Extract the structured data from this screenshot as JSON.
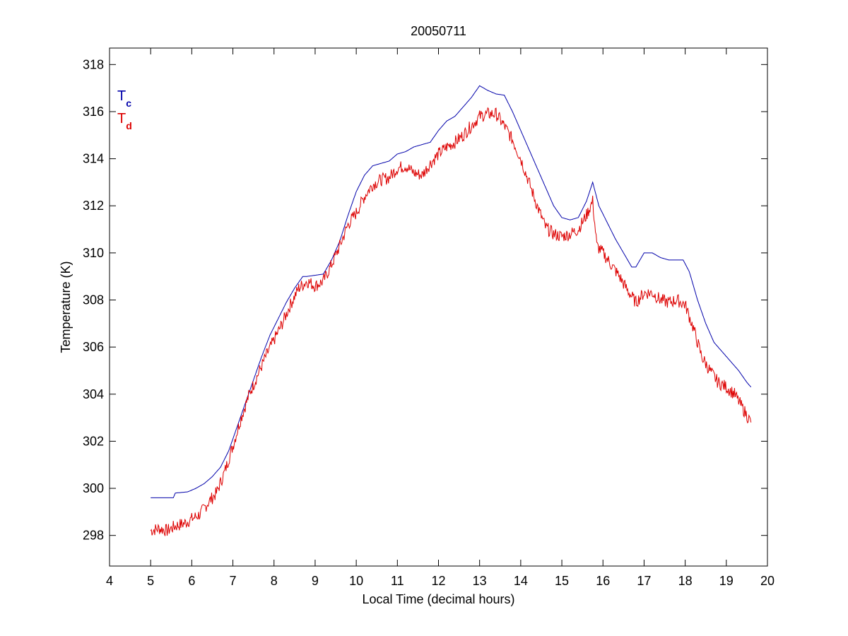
{
  "chart_data": {
    "type": "line",
    "title": "20050711",
    "xlabel": "Local Time (decimal hours)",
    "ylabel": "Temperature (K)",
    "xlim": [
      4,
      20
    ],
    "ylim": [
      296.7,
      318.7
    ],
    "xticks": [
      4,
      5,
      6,
      7,
      8,
      9,
      10,
      11,
      12,
      13,
      14,
      15,
      16,
      17,
      18,
      19,
      20
    ],
    "yticks": [
      298,
      300,
      302,
      304,
      306,
      308,
      310,
      312,
      314,
      316,
      318
    ],
    "grid": false,
    "legend_position": "top-left",
    "legend": [
      {
        "main": "T",
        "sub": "c",
        "color": "#0000aa"
      },
      {
        "main": "T",
        "sub": "d",
        "color": "#dd0000"
      }
    ],
    "series": [
      {
        "color": "#0000aa",
        "noise": 0,
        "x": [
          5.0,
          5.3,
          5.55,
          5.6,
          5.9,
          6.1,
          6.3,
          6.5,
          6.7,
          6.9,
          7.1,
          7.3,
          7.5,
          7.7,
          7.9,
          8.1,
          8.3,
          8.5,
          8.7,
          8.8,
          9.0,
          9.2,
          9.4,
          9.6,
          9.8,
          10.0,
          10.2,
          10.4,
          10.6,
          10.8,
          11.0,
          11.2,
          11.4,
          11.6,
          11.8,
          12.0,
          12.2,
          12.4,
          12.6,
          12.8,
          13.0,
          13.2,
          13.4,
          13.6,
          13.8,
          14.0,
          14.2,
          14.4,
          14.6,
          14.8,
          15.0,
          15.2,
          15.4,
          15.6,
          15.75,
          15.9,
          16.1,
          16.3,
          16.5,
          16.7,
          16.8,
          17.0,
          17.2,
          17.4,
          17.6,
          17.8,
          17.95,
          18.1,
          18.3,
          18.5,
          18.7,
          18.9,
          19.1,
          19.3,
          19.5,
          19.6
        ],
        "values": [
          299.6,
          299.6,
          299.6,
          299.8,
          299.85,
          300.0,
          300.2,
          300.5,
          300.9,
          301.6,
          302.6,
          303.6,
          304.6,
          305.6,
          306.5,
          307.2,
          307.9,
          308.5,
          309.0,
          309.0,
          309.05,
          309.1,
          309.7,
          310.5,
          311.6,
          312.6,
          313.3,
          313.7,
          313.8,
          313.9,
          314.2,
          314.3,
          314.5,
          314.6,
          314.7,
          315.2,
          315.6,
          315.8,
          316.2,
          316.6,
          317.1,
          316.9,
          316.75,
          316.7,
          316.0,
          315.2,
          314.4,
          313.6,
          312.8,
          312.0,
          311.5,
          311.4,
          311.5,
          312.2,
          313.0,
          312.0,
          311.3,
          310.6,
          310.0,
          309.4,
          309.4,
          310.0,
          310.0,
          309.8,
          309.7,
          309.7,
          309.7,
          309.2,
          308.0,
          307.0,
          306.2,
          305.8,
          305.4,
          305.0,
          304.5,
          304.3
        ]
      },
      {
        "color": "#dd0000",
        "noise": 1,
        "x": [
          5.0,
          5.2,
          5.4,
          5.6,
          5.8,
          6.0,
          6.2,
          6.4,
          6.6,
          6.8,
          7.0,
          7.2,
          7.4,
          7.6,
          7.8,
          8.0,
          8.2,
          8.4,
          8.6,
          8.8,
          9.0,
          9.2,
          9.4,
          9.6,
          9.8,
          10.0,
          10.2,
          10.4,
          10.6,
          10.8,
          11.0,
          11.2,
          11.4,
          11.6,
          11.8,
          12.0,
          12.2,
          12.4,
          12.6,
          12.8,
          13.0,
          13.2,
          13.4,
          13.6,
          13.8,
          14.0,
          14.2,
          14.4,
          14.6,
          14.8,
          15.0,
          15.2,
          15.4,
          15.6,
          15.75,
          15.85,
          16.0,
          16.2,
          16.4,
          16.6,
          16.8,
          17.0,
          17.2,
          17.4,
          17.6,
          17.8,
          18.0,
          18.2,
          18.4,
          18.6,
          18.8,
          19.0,
          19.2,
          19.4,
          19.6
        ],
        "values": [
          298.2,
          298.3,
          298.2,
          298.4,
          298.5,
          298.7,
          298.9,
          299.4,
          299.8,
          300.7,
          301.8,
          303.0,
          304.0,
          304.8,
          305.6,
          306.3,
          307.0,
          307.8,
          308.5,
          308.8,
          308.6,
          308.8,
          309.5,
          310.3,
          311.2,
          311.7,
          312.4,
          312.9,
          313.1,
          313.2,
          313.6,
          313.7,
          313.4,
          313.3,
          313.8,
          314.2,
          314.5,
          314.7,
          315.0,
          315.4,
          315.8,
          315.9,
          315.9,
          315.4,
          314.8,
          314.0,
          313.0,
          312.0,
          311.1,
          310.8,
          310.7,
          310.8,
          311.0,
          311.6,
          312.2,
          310.3,
          310.0,
          309.5,
          309.0,
          308.4,
          307.9,
          308.3,
          308.3,
          308.0,
          307.9,
          308.0,
          307.8,
          306.8,
          305.6,
          305.0,
          304.5,
          304.3,
          304.0,
          303.4,
          302.8
        ]
      }
    ]
  }
}
